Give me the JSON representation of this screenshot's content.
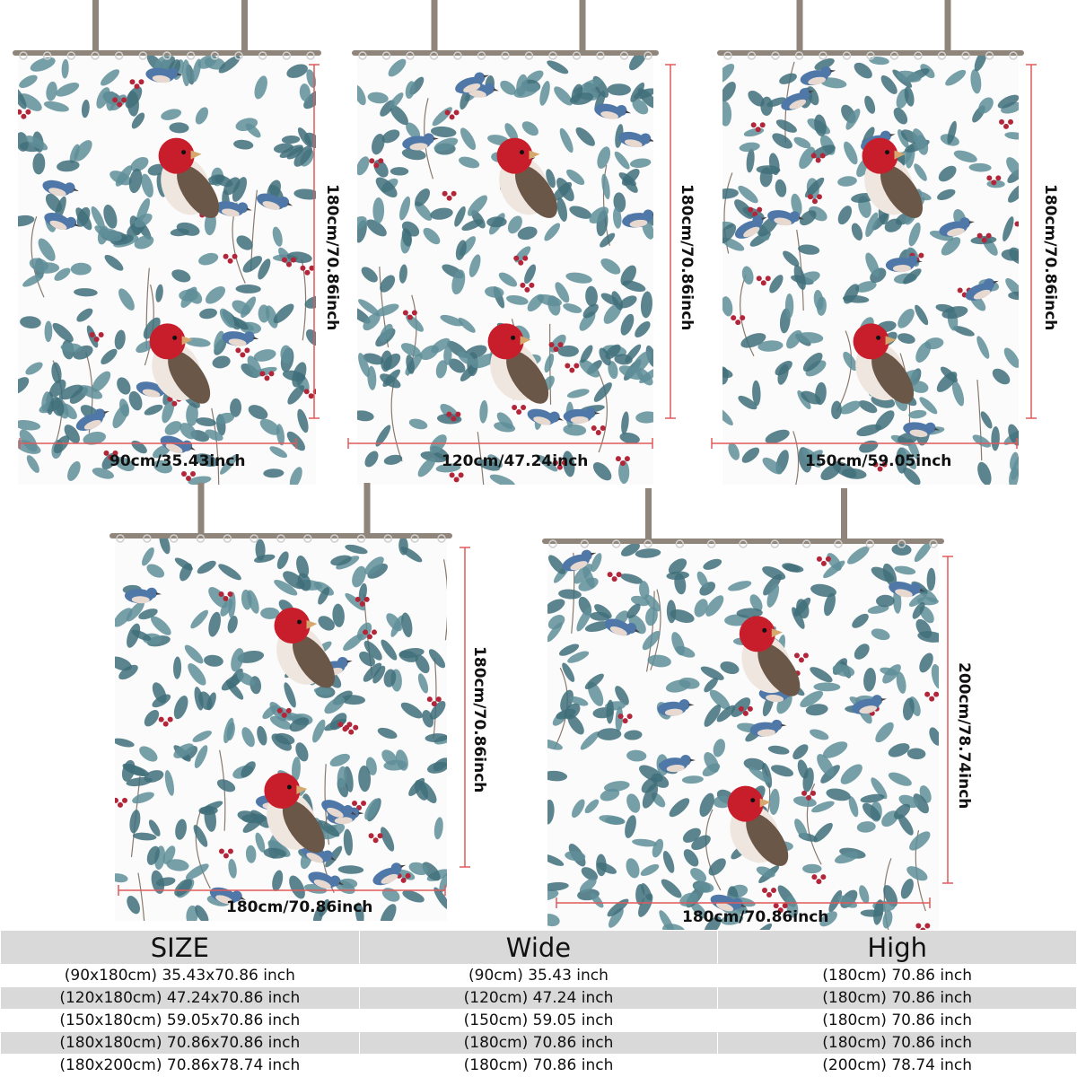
{
  "colors": {
    "leaf": "#5f8e99",
    "leaf_dark": "#3f6e7a",
    "bird_red": "#c81e2c",
    "bird_blue": "#4f78a8",
    "berry": "#b3263a",
    "rod": "#8f857a",
    "dimension_line": "#e05a5a",
    "table_gray": "#d9d9d9"
  },
  "panels": [
    {
      "id": "p90x180",
      "width_label": "90cm/35.43inch",
      "height_label": "180cm/70.86inch"
    },
    {
      "id": "p120x180",
      "width_label": "120cm/47.24inch",
      "height_label": "180cm/70.86inch"
    },
    {
      "id": "p150x180",
      "width_label": "150cm/59.05inch",
      "height_label": "180cm/70.86inch"
    },
    {
      "id": "p180x180",
      "width_label": "180cm/70.86inch",
      "height_label": "180cm/70.86inch"
    },
    {
      "id": "p180x200",
      "width_label": "180cm/70.86inch",
      "height_label": "200cm/78.74inch"
    }
  ],
  "table": {
    "headers": [
      "SIZE",
      "Wide",
      "High"
    ],
    "rows": [
      [
        "(90x180cm) 35.43x70.86 inch",
        "(90cm) 35.43 inch",
        "(180cm) 70.86 inch"
      ],
      [
        "(120x180cm) 47.24x70.86 inch",
        "(120cm) 47.24 inch",
        "(180cm) 70.86 inch"
      ],
      [
        "(150x180cm) 59.05x70.86 inch",
        "(150cm) 59.05 inch",
        "(180cm) 70.86 inch"
      ],
      [
        "(180x180cm) 70.86x70.86 inch",
        "(180cm) 70.86 inch",
        "(180cm) 70.86 inch"
      ],
      [
        "(180x200cm) 70.86x78.74 inch",
        "(180cm) 70.86 inch",
        "(200cm) 78.74 inch"
      ]
    ]
  }
}
